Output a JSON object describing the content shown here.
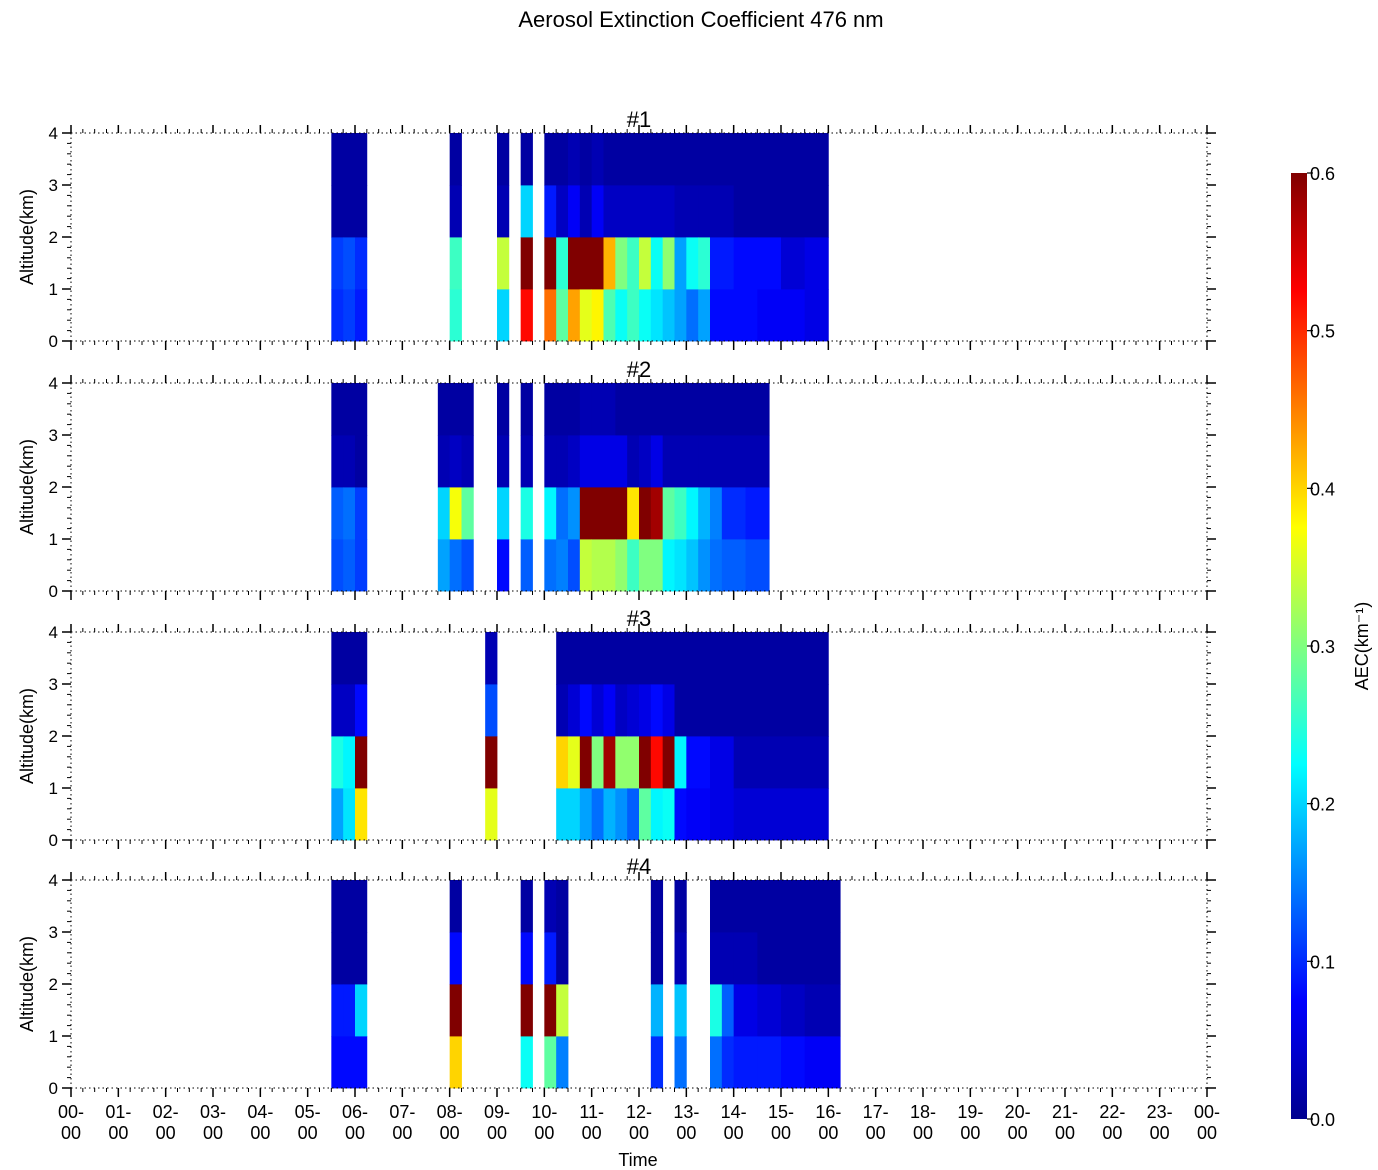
{
  "title": "Aerosol Extinction Coefficient 476 nm",
  "xlabel": "Time",
  "ylabel": "Altitude(km)",
  "colorbar_label": "AEC(km⁻¹)",
  "chart_data": {
    "type": "heatmap",
    "colormap": "jet",
    "title": "Aerosol Extinction Coefficient 476 nm",
    "xlabel": "Time",
    "ylabel": "Altitude(km)",
    "x_unit": "hour of day",
    "xlim": [
      0,
      24
    ],
    "ylim": [
      0,
      4
    ],
    "value_range": [
      0.0,
      0.6
    ],
    "x_tick_labels": [
      "00-00",
      "01-00",
      "02-00",
      "03-00",
      "04-00",
      "05-00",
      "06-00",
      "07-00",
      "08-00",
      "09-00",
      "10-00",
      "11-00",
      "12-00",
      "13-00",
      "14-00",
      "15-00",
      "16-00",
      "17-00",
      "18-00",
      "19-00",
      "20-00",
      "21-00",
      "22-00",
      "23-00",
      "00-00"
    ],
    "y_tick_labels": [
      "0",
      "1",
      "2",
      "3",
      "4"
    ],
    "altitude_bins_km": [
      [
        0,
        1
      ],
      [
        1,
        2
      ],
      [
        2,
        3
      ],
      [
        3,
        4
      ]
    ],
    "colorbar": {
      "label": "AEC(km⁻¹)",
      "ticks": [
        "0.0",
        "0.1",
        "0.2",
        "0.3",
        "0.4",
        "0.5",
        "0.6"
      ]
    },
    "panels": [
      {
        "name": "#1",
        "columns": [
          {
            "t0": 5.5,
            "t1": 5.75,
            "v": [
              0.1,
              0.11,
              0.02,
              0.02
            ]
          },
          {
            "t0": 5.75,
            "t1": 6.0,
            "v": [
              0.11,
              0.12,
              0.02,
              0.02
            ]
          },
          {
            "t0": 6.0,
            "t1": 6.25,
            "v": [
              0.09,
              0.1,
              0.02,
              0.02
            ]
          },
          {
            "t0": 8.0,
            "t1": 8.25,
            "v": [
              0.25,
              0.26,
              0.03,
              0.02
            ]
          },
          {
            "t0": 9.0,
            "t1": 9.25,
            "v": [
              0.2,
              0.34,
              0.03,
              0.02
            ]
          },
          {
            "t0": 9.5,
            "t1": 9.75,
            "v": [
              0.52,
              0.6,
              0.2,
              0.02
            ]
          },
          {
            "t0": 10.0,
            "t1": 10.25,
            "v": [
              0.46,
              0.6,
              0.09,
              0.02
            ]
          },
          {
            "t0": 10.25,
            "t1": 10.5,
            "v": [
              0.28,
              0.25,
              0.04,
              0.02
            ]
          },
          {
            "t0": 10.5,
            "t1": 10.75,
            "v": [
              0.43,
              0.6,
              0.07,
              0.03
            ]
          },
          {
            "t0": 10.75,
            "t1": 11.0,
            "v": [
              0.36,
              0.6,
              0.03,
              0.02
            ]
          },
          {
            "t0": 11.0,
            "t1": 11.25,
            "v": [
              0.38,
              0.6,
              0.07,
              0.03
            ]
          },
          {
            "t0": 11.25,
            "t1": 11.5,
            "v": [
              0.27,
              0.42,
              0.04,
              0.02
            ]
          },
          {
            "t0": 11.5,
            "t1": 11.75,
            "v": [
              0.23,
              0.3,
              0.04,
              0.02
            ]
          },
          {
            "t0": 11.75,
            "t1": 12.0,
            "v": [
              0.26,
              0.26,
              0.04,
              0.02
            ]
          },
          {
            "t0": 12.0,
            "t1": 12.25,
            "v": [
              0.23,
              0.34,
              0.04,
              0.02
            ]
          },
          {
            "t0": 12.25,
            "t1": 12.5,
            "v": [
              0.21,
              0.23,
              0.04,
              0.02
            ]
          },
          {
            "t0": 12.5,
            "t1": 12.75,
            "v": [
              0.19,
              0.31,
              0.04,
              0.02
            ]
          },
          {
            "t0": 12.75,
            "t1": 13.0,
            "v": [
              0.17,
              0.17,
              0.03,
              0.02
            ]
          },
          {
            "t0": 13.0,
            "t1": 13.25,
            "v": [
              0.14,
              0.23,
              0.03,
              0.02
            ]
          },
          {
            "t0": 13.25,
            "t1": 13.5,
            "v": [
              0.17,
              0.25,
              0.03,
              0.02
            ]
          },
          {
            "t0": 13.5,
            "t1": 14.0,
            "v": [
              0.08,
              0.09,
              0.03,
              0.02
            ]
          },
          {
            "t0": 14.0,
            "t1": 14.5,
            "v": [
              0.08,
              0.08,
              0.02,
              0.02
            ]
          },
          {
            "t0": 14.5,
            "t1": 15.0,
            "v": [
              0.07,
              0.08,
              0.02,
              0.02
            ]
          },
          {
            "t0": 15.0,
            "t1": 15.5,
            "v": [
              0.07,
              0.05,
              0.02,
              0.02
            ]
          },
          {
            "t0": 15.5,
            "t1": 16.0,
            "v": [
              0.06,
              0.06,
              0.02,
              0.02
            ]
          }
        ]
      },
      {
        "name": "#2",
        "columns": [
          {
            "t0": 5.5,
            "t1": 5.75,
            "v": [
              0.12,
              0.13,
              0.03,
              0.02
            ]
          },
          {
            "t0": 5.75,
            "t1": 6.0,
            "v": [
              0.13,
              0.14,
              0.03,
              0.02
            ]
          },
          {
            "t0": 6.0,
            "t1": 6.25,
            "v": [
              0.11,
              0.11,
              0.02,
              0.02
            ]
          },
          {
            "t0": 7.75,
            "t1": 8.0,
            "v": [
              0.17,
              0.2,
              0.03,
              0.02
            ]
          },
          {
            "t0": 8.0,
            "t1": 8.25,
            "v": [
              0.14,
              0.37,
              0.04,
              0.02
            ]
          },
          {
            "t0": 8.25,
            "t1": 8.5,
            "v": [
              0.12,
              0.28,
              0.03,
              0.02
            ]
          },
          {
            "t0": 9.0,
            "t1": 9.25,
            "v": [
              0.08,
              0.2,
              0.03,
              0.02
            ]
          },
          {
            "t0": 9.5,
            "t1": 9.75,
            "v": [
              0.13,
              0.24,
              0.03,
              0.02
            ]
          },
          {
            "t0": 10.0,
            "t1": 10.25,
            "v": [
              0.14,
              0.22,
              0.03,
              0.02
            ]
          },
          {
            "t0": 10.25,
            "t1": 10.5,
            "v": [
              0.15,
              0.14,
              0.03,
              0.02
            ]
          },
          {
            "t0": 10.5,
            "t1": 10.75,
            "v": [
              0.12,
              0.16,
              0.04,
              0.02
            ]
          },
          {
            "t0": 10.75,
            "t1": 11.0,
            "v": [
              0.34,
              0.6,
              0.06,
              0.03
            ]
          },
          {
            "t0": 11.0,
            "t1": 11.5,
            "v": [
              0.33,
              0.6,
              0.06,
              0.03
            ]
          },
          {
            "t0": 11.5,
            "t1": 11.75,
            "v": [
              0.31,
              0.6,
              0.06,
              0.02
            ]
          },
          {
            "t0": 11.75,
            "t1": 12.0,
            "v": [
              0.26,
              0.39,
              0.03,
              0.02
            ]
          },
          {
            "t0": 12.0,
            "t1": 12.25,
            "v": [
              0.3,
              0.6,
              0.04,
              0.02
            ]
          },
          {
            "t0": 12.25,
            "t1": 12.5,
            "v": [
              0.3,
              0.58,
              0.06,
              0.02
            ]
          },
          {
            "t0": 12.5,
            "t1": 12.75,
            "v": [
              0.22,
              0.28,
              0.03,
              0.02
            ]
          },
          {
            "t0": 12.75,
            "t1": 13.0,
            "v": [
              0.21,
              0.26,
              0.03,
              0.02
            ]
          },
          {
            "t0": 13.0,
            "t1": 13.25,
            "v": [
              0.19,
              0.22,
              0.03,
              0.02
            ]
          },
          {
            "t0": 13.25,
            "t1": 13.5,
            "v": [
              0.16,
              0.18,
              0.03,
              0.02
            ]
          },
          {
            "t0": 13.5,
            "t1": 13.75,
            "v": [
              0.14,
              0.15,
              0.03,
              0.02
            ]
          },
          {
            "t0": 13.75,
            "t1": 14.25,
            "v": [
              0.13,
              0.1,
              0.03,
              0.02
            ]
          },
          {
            "t0": 14.25,
            "t1": 14.75,
            "v": [
              0.12,
              0.09,
              0.03,
              0.02
            ]
          }
        ]
      },
      {
        "name": "#3",
        "columns": [
          {
            "t0": 5.5,
            "t1": 5.75,
            "v": [
              0.17,
              0.24,
              0.04,
              0.02
            ]
          },
          {
            "t0": 5.75,
            "t1": 6.0,
            "v": [
              0.21,
              0.22,
              0.04,
              0.02
            ]
          },
          {
            "t0": 6.0,
            "t1": 6.25,
            "v": [
              0.39,
              0.6,
              0.08,
              0.02
            ]
          },
          {
            "t0": 8.75,
            "t1": 9.0,
            "v": [
              0.36,
              0.6,
              0.12,
              0.03
            ]
          },
          {
            "t0": 10.25,
            "t1": 10.5,
            "v": [
              0.2,
              0.4,
              0.03,
              0.02
            ]
          },
          {
            "t0": 10.5,
            "t1": 10.75,
            "v": [
              0.2,
              0.36,
              0.05,
              0.02
            ]
          },
          {
            "t0": 10.75,
            "t1": 11.0,
            "v": [
              0.17,
              0.6,
              0.08,
              0.02
            ]
          },
          {
            "t0": 11.0,
            "t1": 11.25,
            "v": [
              0.14,
              0.3,
              0.05,
              0.02
            ]
          },
          {
            "t0": 11.25,
            "t1": 11.5,
            "v": [
              0.18,
              0.58,
              0.07,
              0.02
            ]
          },
          {
            "t0": 11.5,
            "t1": 11.75,
            "v": [
              0.16,
              0.31,
              0.04,
              0.02
            ]
          },
          {
            "t0": 11.75,
            "t1": 12.0,
            "v": [
              0.13,
              0.31,
              0.05,
              0.02
            ]
          },
          {
            "t0": 12.0,
            "t1": 12.25,
            "v": [
              0.28,
              0.6,
              0.06,
              0.02
            ]
          },
          {
            "t0": 12.25,
            "t1": 12.5,
            "v": [
              0.22,
              0.52,
              0.08,
              0.02
            ]
          },
          {
            "t0": 12.5,
            "t1": 12.75,
            "v": [
              0.23,
              0.6,
              0.06,
              0.02
            ]
          },
          {
            "t0": 12.75,
            "t1": 13.0,
            "v": [
              0.08,
              0.22,
              0.02,
              0.02
            ]
          },
          {
            "t0": 13.0,
            "t1": 13.5,
            "v": [
              0.07,
              0.08,
              0.02,
              0.02
            ]
          },
          {
            "t0": 13.5,
            "t1": 14.0,
            "v": [
              0.06,
              0.06,
              0.02,
              0.02
            ]
          },
          {
            "t0": 14.0,
            "t1": 15.0,
            "v": [
              0.05,
              0.03,
              0.02,
              0.02
            ]
          },
          {
            "t0": 15.0,
            "t1": 16.0,
            "v": [
              0.05,
              0.03,
              0.02,
              0.02
            ]
          }
        ]
      },
      {
        "name": "#4",
        "columns": [
          {
            "t0": 5.5,
            "t1": 5.75,
            "v": [
              0.08,
              0.09,
              0.02,
              0.02
            ]
          },
          {
            "t0": 5.75,
            "t1": 6.0,
            "v": [
              0.08,
              0.09,
              0.02,
              0.02
            ]
          },
          {
            "t0": 6.0,
            "t1": 6.25,
            "v": [
              0.08,
              0.2,
              0.02,
              0.02
            ]
          },
          {
            "t0": 8.0,
            "t1": 8.25,
            "v": [
              0.4,
              0.6,
              0.08,
              0.02
            ]
          },
          {
            "t0": 9.5,
            "t1": 9.75,
            "v": [
              0.23,
              0.6,
              0.08,
              0.02
            ]
          },
          {
            "t0": 10.0,
            "t1": 10.25,
            "v": [
              0.28,
              0.6,
              0.09,
              0.03
            ]
          },
          {
            "t0": 10.25,
            "t1": 10.5,
            "v": [
              0.15,
              0.34,
              0.02,
              0.02
            ]
          },
          {
            "t0": 12.25,
            "t1": 12.5,
            "v": [
              0.1,
              0.18,
              0.02,
              0.02
            ]
          },
          {
            "t0": 12.75,
            "t1": 13.0,
            "v": [
              0.14,
              0.19,
              0.03,
              0.02
            ]
          },
          {
            "t0": 13.5,
            "t1": 13.75,
            "v": [
              0.14,
              0.24,
              0.03,
              0.02
            ]
          },
          {
            "t0": 13.75,
            "t1": 14.0,
            "v": [
              0.1,
              0.13,
              0.03,
              0.02
            ]
          },
          {
            "t0": 14.0,
            "t1": 14.5,
            "v": [
              0.09,
              0.06,
              0.03,
              0.02
            ]
          },
          {
            "t0": 14.5,
            "t1": 15.0,
            "v": [
              0.09,
              0.05,
              0.02,
              0.02
            ]
          },
          {
            "t0": 15.0,
            "t1": 15.5,
            "v": [
              0.08,
              0.04,
              0.02,
              0.02
            ]
          },
          {
            "t0": 15.5,
            "t1": 16.25,
            "v": [
              0.07,
              0.03,
              0.02,
              0.02
            ]
          }
        ]
      }
    ]
  }
}
